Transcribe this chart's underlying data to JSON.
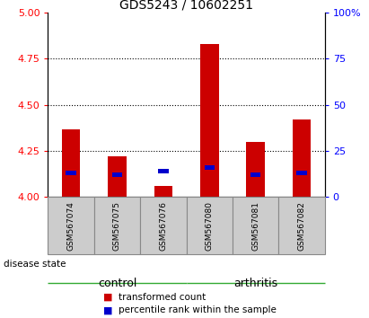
{
  "title": "GDS5243 / 10602251",
  "samples": [
    "GSM567074",
    "GSM567075",
    "GSM567076",
    "GSM567080",
    "GSM567081",
    "GSM567082"
  ],
  "groups": [
    "control",
    "control",
    "control",
    "arthritis",
    "arthritis",
    "arthritis"
  ],
  "red_values": [
    4.37,
    4.22,
    4.06,
    4.83,
    4.3,
    4.42
  ],
  "blue_values": [
    4.13,
    4.12,
    4.14,
    4.16,
    4.12,
    4.13
  ],
  "ymin": 4.0,
  "ymax": 5.0,
  "yticks": [
    4.0,
    4.25,
    4.5,
    4.75,
    5.0
  ],
  "y2min": 0,
  "y2max": 100,
  "y2ticks": [
    0,
    25,
    50,
    75,
    100
  ],
  "bar_width": 0.4,
  "blue_bar_width": 0.22,
  "blue_bar_height": 0.025,
  "red_color": "#CC0000",
  "blue_color": "#0000CC",
  "control_color": "#AAFFAA",
  "arthritis_color": "#44DD44",
  "label_bg_color": "#CCCCCC",
  "legend_red": "transformed count",
  "legend_blue": "percentile rank within the sample"
}
